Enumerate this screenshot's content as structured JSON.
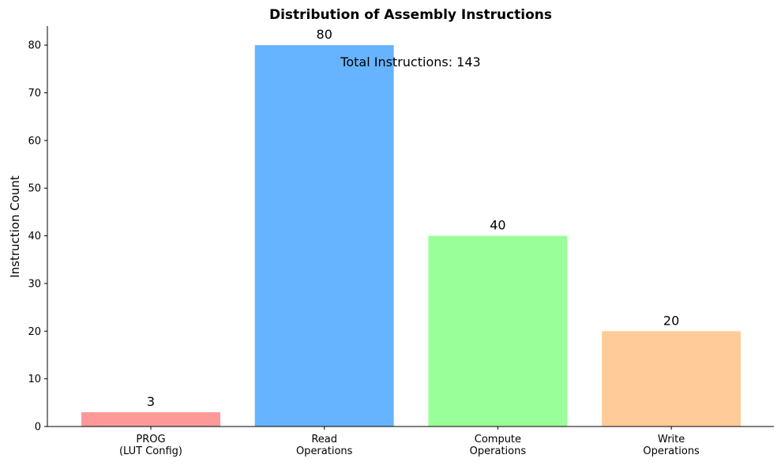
{
  "chart_data": {
    "type": "bar",
    "title": "Distribution of Assembly Instructions",
    "xlabel": "",
    "ylabel": "Instruction Count",
    "categories": [
      [
        "PROG",
        "(LUT Config)"
      ],
      [
        "Read",
        "Operations"
      ],
      [
        "Compute",
        "Operations"
      ],
      [
        "Write",
        "Operations"
      ]
    ],
    "values": [
      3,
      80,
      40,
      20
    ],
    "colors": [
      "#ff9999",
      "#66b3ff",
      "#99ff99",
      "#ffcc99"
    ],
    "ylim": [
      0,
      84
    ],
    "yticks": [
      0,
      10,
      20,
      30,
      40,
      50,
      60,
      70,
      80
    ],
    "grid": false,
    "annotation": "Total Instructions: 143"
  }
}
